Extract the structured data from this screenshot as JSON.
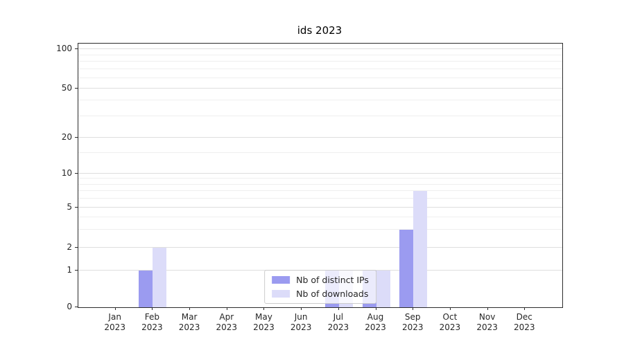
{
  "title": "ids 2023",
  "chart_data": {
    "type": "bar",
    "title": "ids 2023",
    "categories": [
      "Jan 2023",
      "Feb 2023",
      "Mar 2023",
      "Apr 2023",
      "May 2023",
      "Jun 2023",
      "Jul 2023",
      "Aug 2023",
      "Sep 2023",
      "Oct 2023",
      "Nov 2023",
      "Dec 2023"
    ],
    "series": [
      {
        "name": "Nb of distinct IPs",
        "color": "#9b9bf0",
        "values": [
          0,
          1,
          0,
          0,
          0,
          0,
          1,
          1,
          3,
          0,
          0,
          0
        ]
      },
      {
        "name": "Nb of downloads",
        "color": "#dcdcf9",
        "values": [
          0,
          2,
          0,
          0,
          0,
          0,
          1,
          1,
          7,
          0,
          0,
          0
        ]
      }
    ],
    "xlabel": "",
    "ylabel": "",
    "y_axis": {
      "scale": "log-like",
      "major_ticks": [
        0,
        1,
        2,
        5,
        10,
        20,
        50,
        100
      ],
      "minor_ticks": [
        3,
        4,
        6,
        7,
        8,
        9,
        15,
        30,
        40,
        60,
        70,
        80,
        90
      ],
      "range": [
        0,
        100
      ]
    },
    "grid": true,
    "legend_position": "lower center"
  },
  "colors": {
    "bar_distinct_ips": "#9b9bf0",
    "bar_downloads": "#dcdcf9",
    "grid_major": "#dedede",
    "grid_minor": "#efefef",
    "spine": "#2b2b2b",
    "tick_text": "#262626",
    "legend_border": "#cccccc"
  }
}
